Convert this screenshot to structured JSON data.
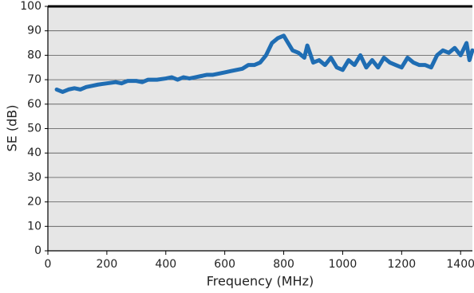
{
  "chart_data": {
    "type": "line",
    "xlabel": "Frequency (MHz)",
    "ylabel": "SE (dB)",
    "xlim": [
      0,
      1440
    ],
    "ylim": [
      0,
      100
    ],
    "xticks": [
      0,
      200,
      400,
      600,
      800,
      1000,
      1200,
      1400
    ],
    "yticks": [
      0,
      10,
      20,
      30,
      40,
      50,
      60,
      70,
      80,
      90,
      100
    ],
    "grid": true,
    "series": [
      {
        "name": "SE",
        "color": "#1f6db3",
        "x": [
          30,
          50,
          70,
          90,
          110,
          130,
          150,
          170,
          200,
          230,
          250,
          270,
          300,
          320,
          340,
          370,
          400,
          420,
          440,
          460,
          480,
          500,
          520,
          540,
          560,
          580,
          600,
          620,
          640,
          660,
          680,
          700,
          720,
          740,
          760,
          780,
          800,
          810,
          830,
          850,
          870,
          880,
          900,
          920,
          940,
          960,
          980,
          1000,
          1020,
          1040,
          1060,
          1080,
          1100,
          1120,
          1140,
          1160,
          1180,
          1200,
          1220,
          1240,
          1260,
          1280,
          1300,
          1320,
          1340,
          1360,
          1380,
          1400,
          1420,
          1430,
          1440
        ],
        "values": [
          66,
          65,
          66,
          66.5,
          66,
          67,
          67.5,
          68,
          68.5,
          69,
          68.5,
          69.5,
          69.5,
          69,
          70,
          70,
          70.5,
          71,
          70,
          71,
          70.5,
          71,
          71.5,
          72,
          72,
          72.5,
          73,
          73.5,
          74,
          74.5,
          76,
          76,
          77,
          80,
          85,
          87,
          88,
          86,
          82,
          81,
          79,
          84,
          77,
          78,
          76,
          79,
          75,
          74,
          78,
          76,
          80,
          75,
          78,
          75,
          79,
          77,
          76,
          75,
          79,
          77,
          76,
          76,
          75,
          80,
          82,
          81,
          83,
          80,
          85,
          78,
          82
        ]
      }
    ]
  }
}
